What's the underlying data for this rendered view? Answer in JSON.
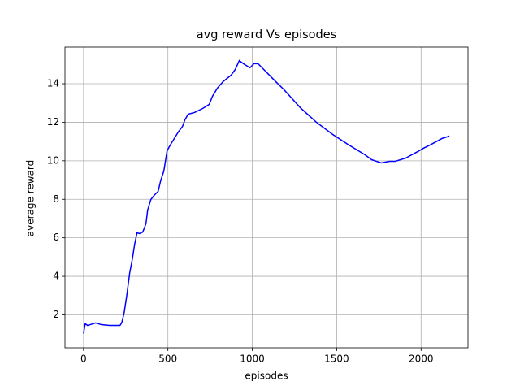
{
  "chart_data": {
    "type": "line",
    "title": "avg reward Vs episodes",
    "x_label": "episodes",
    "y_label": "average reward",
    "x": [
      0,
      10,
      24,
      43,
      72,
      106,
      154,
      216,
      226,
      240,
      255,
      274,
      288,
      303,
      317,
      332,
      351,
      370,
      380,
      399,
      418,
      442,
      457,
      476,
      495,
      514,
      538,
      562,
      587,
      601,
      620,
      659,
      707,
      745,
      764,
      793,
      827,
      875,
      899,
      923,
      947,
      986,
      1010,
      1034,
      1058,
      1139,
      1188,
      1284,
      1380,
      1476,
      1572,
      1668,
      1707,
      1764,
      1813,
      1846,
      1909,
      1981,
      2014,
      2053,
      2125,
      2168
    ],
    "series": [
      {
        "name": "average reward",
        "color": "#0000ff",
        "values": [
          1.03,
          1.54,
          1.45,
          1.5,
          1.58,
          1.49,
          1.45,
          1.45,
          1.58,
          2.08,
          2.93,
          4.2,
          4.83,
          5.67,
          6.26,
          6.22,
          6.3,
          6.73,
          7.44,
          7.99,
          8.2,
          8.41,
          8.96,
          9.47,
          10.52,
          10.82,
          11.16,
          11.5,
          11.79,
          12.13,
          12.42,
          12.51,
          12.72,
          12.93,
          13.35,
          13.77,
          14.11,
          14.45,
          14.74,
          15.2,
          15.04,
          14.83,
          15.04,
          15.04,
          14.83,
          14.11,
          13.69,
          12.76,
          12.0,
          11.37,
          10.82,
          10.31,
          10.06,
          9.89,
          9.97,
          9.97,
          10.14,
          10.48,
          10.65,
          10.82,
          11.16,
          11.28
        ]
      }
    ],
    "xlim": [
      -110,
      2278
    ],
    "xticks": [
      0,
      500,
      1000,
      1500,
      2000
    ],
    "ylim": [
      0.29,
      15.9
    ],
    "yticks": [
      2,
      4,
      6,
      8,
      10,
      12,
      14
    ],
    "grid": true
  }
}
